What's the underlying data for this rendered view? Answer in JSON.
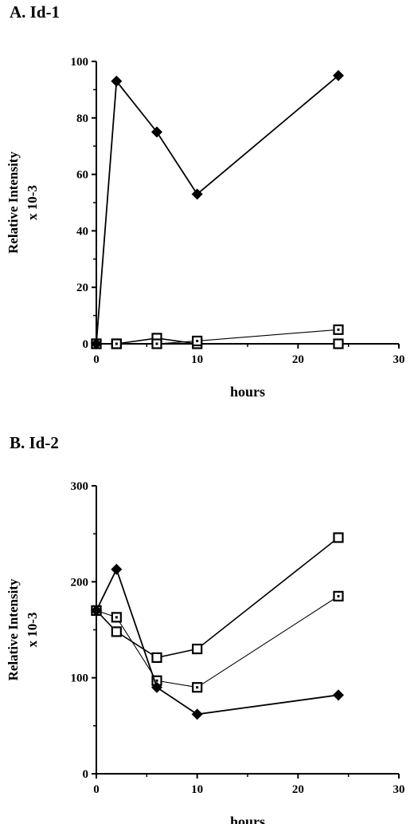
{
  "chart_data": [
    {
      "panel_title": "A. Id-1",
      "type": "line",
      "xlabel": "hours",
      "ylabel_line1": "Relative Intensity",
      "ylabel_line2": "x 10-3",
      "xlim": [
        0,
        30
      ],
      "ylim": [
        0,
        100
      ],
      "x_ticks": [
        0,
        10,
        20,
        30
      ],
      "y_ticks": [
        0,
        20,
        40,
        60,
        80,
        100
      ],
      "grid": false,
      "legend": "none",
      "series": [
        {
          "marker": "filled-diamond",
          "x": [
            0,
            2,
            6,
            10,
            24
          ],
          "y": [
            0,
            93,
            75,
            53,
            95
          ]
        },
        {
          "marker": "open-square",
          "x": [
            0,
            2,
            6,
            10,
            24
          ],
          "y": [
            0,
            0,
            2,
            0,
            0
          ]
        },
        {
          "marker": "dotted-square",
          "x": [
            0,
            2,
            6,
            10,
            24
          ],
          "y": [
            0,
            0,
            0,
            1,
            5
          ]
        }
      ]
    },
    {
      "panel_title": "B. Id-2",
      "type": "line",
      "xlabel": "hours",
      "ylabel_line1": "Relative Intensity",
      "ylabel_line2": "x 10-3",
      "xlim": [
        0,
        30
      ],
      "ylim": [
        0,
        300
      ],
      "x_ticks": [
        0,
        10,
        20,
        30
      ],
      "y_ticks": [
        0,
        100,
        200,
        300
      ],
      "grid": false,
      "legend": "none",
      "series": [
        {
          "marker": "filled-diamond",
          "x": [
            0,
            2,
            6,
            10,
            24
          ],
          "y": [
            170,
            213,
            90,
            62,
            82
          ]
        },
        {
          "marker": "open-square",
          "x": [
            0,
            2,
            6,
            10,
            24
          ],
          "y": [
            170,
            148,
            121,
            130,
            246
          ]
        },
        {
          "marker": "dotted-square",
          "x": [
            0,
            2,
            6,
            10,
            24
          ],
          "y": [
            170,
            163,
            97,
            90,
            185
          ]
        }
      ]
    }
  ]
}
